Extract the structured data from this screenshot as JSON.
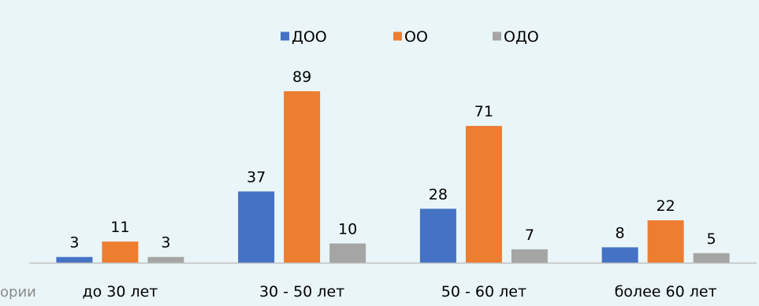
{
  "clipped_text": "ории",
  "chart_data": {
    "type": "bar",
    "title": "",
    "xlabel": "",
    "ylabel": "",
    "categories": [
      "до 30 лет",
      "30 - 50 лет",
      "50 - 60 лет",
      "более 60 лет"
    ],
    "series": [
      {
        "name": "ДОО",
        "values": [
          3,
          37,
          28,
          8
        ],
        "color": "#4472c4"
      },
      {
        "name": "ОО",
        "values": [
          11,
          89,
          71,
          22
        ],
        "color": "#ed7d31"
      },
      {
        "name": "ОДО",
        "values": [
          3,
          10,
          7,
          5
        ],
        "color": "#a5a5a5"
      }
    ],
    "ylim": [
      0,
      89
    ],
    "legend": "top-center",
    "grid": false,
    "data_labels": true,
    "axis_color": "#bfbfbf"
  }
}
